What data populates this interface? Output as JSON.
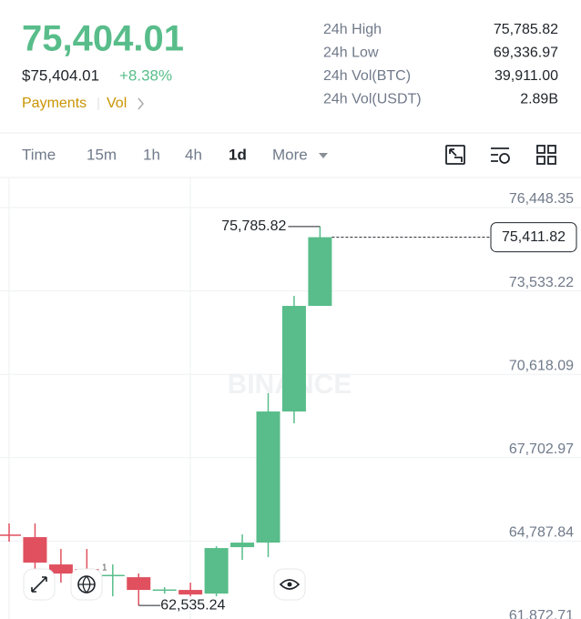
{
  "header": {
    "price": "75,404.01",
    "price_usd": "$75,404.01",
    "change": "+8.38%",
    "links": [
      "Payments",
      "Vol"
    ]
  },
  "stats": [
    {
      "label": "24h High",
      "value": "75,785.82"
    },
    {
      "label": "24h Low",
      "value": "69,336.97"
    },
    {
      "label": "24h Vol(BTC)",
      "value": "39,911.00"
    },
    {
      "label": "24h Vol(USDT)",
      "value": "2.89B"
    }
  ],
  "tabs": [
    "Time",
    "15m",
    "1h",
    "4h",
    "1d",
    "More"
  ],
  "indicator_badge": "1",
  "chart_data": {
    "type": "candlestick",
    "watermark": "BINANCE",
    "open": [
      65016,
      64925,
      63970,
      63811,
      63576,
      63524,
      63066,
      63079,
      62952,
      64575,
      64734,
      69318,
      73010
    ],
    "high": [
      65403,
      65403,
      64511,
      64511,
      63970,
      63652,
      63174,
      63334,
      64607,
      65021,
      69954,
      73360,
      75785.82
    ],
    "low": [
      64766,
      63811,
      63334,
      63334,
      62856,
      62535.24,
      62952,
      62856,
      62856,
      64129,
      64225,
      68904,
      73010
    ],
    "close": [
      64986,
      64034,
      63652,
      63652,
      63606,
      63079,
      63096,
      62920,
      64543,
      64734,
      69318,
      73010,
      75411.82
    ],
    "up_color": "#58bd8a",
    "down_color": "#e0505f",
    "ylim": [
      61840,
      77499
    ],
    "yticks": [
      {
        "value": 76448.35,
        "label": "76,448.35"
      },
      {
        "value": 73533.22,
        "label": "73,533.22"
      },
      {
        "value": 70618.09,
        "label": "70,618.09"
      },
      {
        "value": 67702.97,
        "label": "67,702.97"
      },
      {
        "value": 64787.84,
        "label": "64,787.84"
      },
      {
        "value": 61872.71,
        "label": "61,872.71"
      }
    ],
    "high_marker": {
      "value": 75785.82,
      "label": "75,785.82"
    },
    "low_marker": {
      "value": 62535.24,
      "label": "62,535.24"
    },
    "current_price": {
      "value": 75411.82,
      "label": "75,411.82"
    },
    "grid": true
  }
}
